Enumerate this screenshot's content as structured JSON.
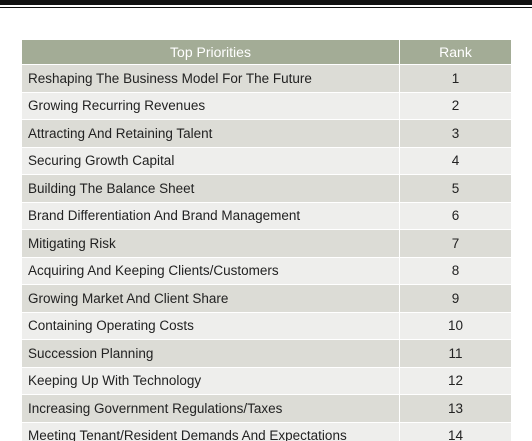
{
  "table": {
    "headers": {
      "priority": "Top Priorities",
      "rank": "Rank"
    },
    "header_color": "#a3ac96",
    "row_colors": [
      "#dcdcd6",
      "#eeeeec"
    ],
    "rows": [
      {
        "priority": "Reshaping The Business Model For The Future",
        "rank": "1"
      },
      {
        "priority": "Growing Recurring Revenues",
        "rank": "2"
      },
      {
        "priority": "Attracting And Retaining Talent",
        "rank": "3"
      },
      {
        "priority": "Securing Growth Capital",
        "rank": "4"
      },
      {
        "priority": "Building The Balance Sheet",
        "rank": "5"
      },
      {
        "priority": "Brand Differentiation And Brand Management",
        "rank": "6"
      },
      {
        "priority": "Mitigating Risk",
        "rank": "7"
      },
      {
        "priority": "Acquiring And Keeping Clients/Customers",
        "rank": "8"
      },
      {
        "priority": "Growing Market And Client Share",
        "rank": "9"
      },
      {
        "priority": "Containing Operating Costs",
        "rank": "10"
      },
      {
        "priority": "Succession Planning",
        "rank": "11"
      },
      {
        "priority": "Keeping Up With Technology",
        "rank": "12"
      },
      {
        "priority": "Increasing Government Regulations/Taxes",
        "rank": "13"
      },
      {
        "priority": "Meeting Tenant/Resident Demands And Expectations",
        "rank": "14"
      }
    ]
  }
}
